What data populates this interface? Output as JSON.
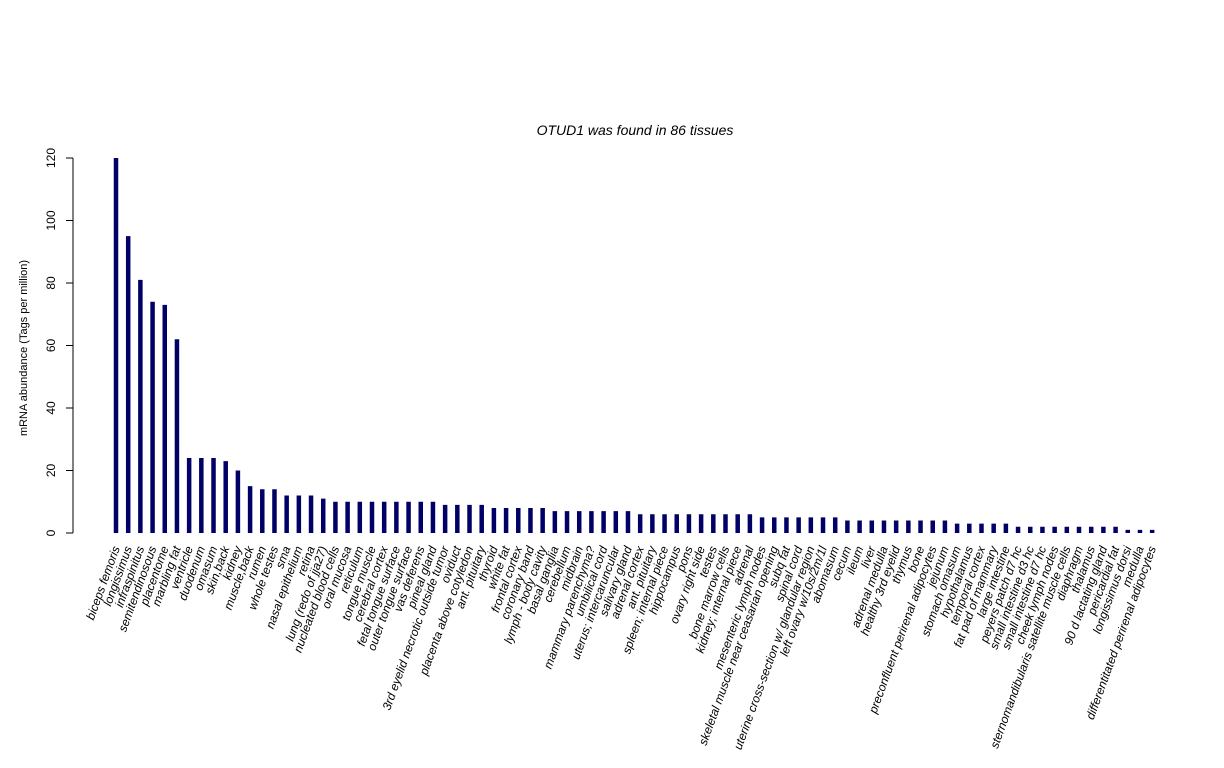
{
  "chart_data": {
    "type": "bar",
    "title": "OTUD1  was found in  86  tissues",
    "xlabel": "",
    "ylabel": "mRNA abundance (Tags per million)",
    "ylim": [
      0,
      120
    ],
    "yticks": [
      0,
      20,
      40,
      60,
      80,
      100,
      120
    ],
    "bar_color": "#000066",
    "categories": [
      "biceps femoris",
      "longissimus",
      "infraspinitus",
      "semitendinosous",
      "placentome",
      "marbling fat",
      "ventricle",
      "duodenum",
      "omasum",
      "skin,back",
      "kidney",
      "muscle,back",
      "rumen",
      "whole testes",
      "sma",
      "nasal epithelium",
      "retina",
      "lung (redo of jja27)",
      "nucleated blood cells",
      "oral mucosa",
      "reticulum",
      "tongue muscle",
      "cerebral cortex",
      "fetal tongue surface",
      "outer tongue surface",
      "vas deferens",
      "pineal gland",
      "3rd eyelid necrotic outside tumor",
      "oviduct",
      "placenta above cotyledon",
      "ant. pituitary",
      "thyroid",
      "white fat",
      "frontal cortex",
      "coronary band",
      "lymph - body cavity",
      "basal ganglia",
      "cerebellum",
      "midbrain",
      "mammary parenchyma?",
      "umbilical cord",
      "uterus; intercaruncular",
      "salivary gland",
      "adrenal cortex",
      "ant. pituitary",
      "spleen; internal piece",
      "hippocampus",
      "pons",
      "ovary right side",
      "testes",
      "bone marrow cells",
      "kidney; internal piece",
      "adrenal",
      "mesenteric lymph nodes",
      "skeletal muscle near ceasarian opening",
      "subq fat",
      "spinal cord",
      "uterine cross-section w/ glandular region",
      "left ovary w/10s/2m/1l",
      "abomasum",
      "cecum",
      "ileum",
      "liver",
      "adrenal medulla",
      "healthy 3rd eyelid",
      "thymus",
      "bone",
      "preconfluent perirenal adipocytes",
      "jejunum",
      "stomach omasum",
      "hypothalamus",
      "temporal cortex",
      "fat pad of mammary",
      "large intestine",
      "peyers patch d7 hc",
      "small intestine d3 hc",
      "small intestine d7 hc",
      "cheek lymph nodes",
      "sternomandibularis satellite muscle cells",
      "diaphragm",
      "thalamus",
      "90 d lactating gland",
      "pericardial fat",
      "longissimus dorsi",
      "medulla",
      "differentitated perirenal adipocytes"
    ],
    "values": [
      120,
      95,
      81,
      74,
      73,
      62,
      24,
      24,
      24,
      23,
      20,
      15,
      14,
      14,
      12,
      12,
      12,
      11,
      10,
      10,
      10,
      10,
      10,
      10,
      10,
      10,
      10,
      9,
      9,
      9,
      9,
      8,
      8,
      8,
      8,
      8,
      7,
      7,
      7,
      7,
      7,
      7,
      7,
      6,
      6,
      6,
      6,
      6,
      6,
      6,
      6,
      6,
      6,
      5,
      5,
      5,
      5,
      5,
      5,
      5,
      4,
      4,
      4,
      4,
      4,
      4,
      4,
      4,
      4,
      3,
      3,
      3,
      3,
      3,
      2,
      2,
      2,
      2,
      2,
      2,
      2,
      2,
      2,
      1,
      1,
      1
    ]
  }
}
